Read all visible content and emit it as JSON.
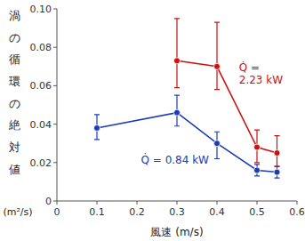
{
  "chart_data": {
    "type": "line",
    "xlabel": "風速 (m/s)",
    "ylabel": "渦の循環の絶対値",
    "ylabel_unit": "(m²/s)",
    "xlim": [
      0,
      0.6
    ],
    "ylim": [
      0,
      0.1
    ],
    "xticks": [
      0,
      0.1,
      0.2,
      0.3,
      0.4,
      0.5,
      0.6
    ],
    "yticks": [
      0,
      0.02,
      0.04,
      0.06,
      0.08,
      {
        "value": 0.1,
        "label": "0.10"
      }
    ],
    "grid": false,
    "marker": "circle",
    "line_style": "solid",
    "series": [
      {
        "color": "#1a3db5",
        "x": [
          0.1,
          0.3,
          0.4,
          0.5,
          0.55
        ],
        "values": [
          0.038,
          0.046,
          0.03,
          0.016,
          0.015
        ],
        "yerr_low": [
          0.006,
          0.007,
          0.008,
          0.003,
          0.003
        ],
        "yerr_high": [
          0.007,
          0.009,
          0.006,
          0.003,
          0.003
        ]
      },
      {
        "color": "#cc1111",
        "x": [
          0.3,
          0.4,
          0.5,
          0.55
        ],
        "values": [
          0.073,
          0.07,
          0.028,
          0.025
        ],
        "yerr_low": [
          0.014,
          0.012,
          0.008,
          0.007
        ],
        "yerr_high": [
          0.022,
          0.023,
          0.009,
          0.009
        ]
      }
    ],
    "annotations": [
      {
        "text": "Q̇ = 0.84 kW",
        "x": 0.21,
        "y": 0.0215,
        "color": "#1a3db5"
      },
      {
        "text": "Q̇ =\n2.23 kW",
        "x": 0.455,
        "y": 0.066,
        "color": "#cc1111"
      }
    ]
  }
}
